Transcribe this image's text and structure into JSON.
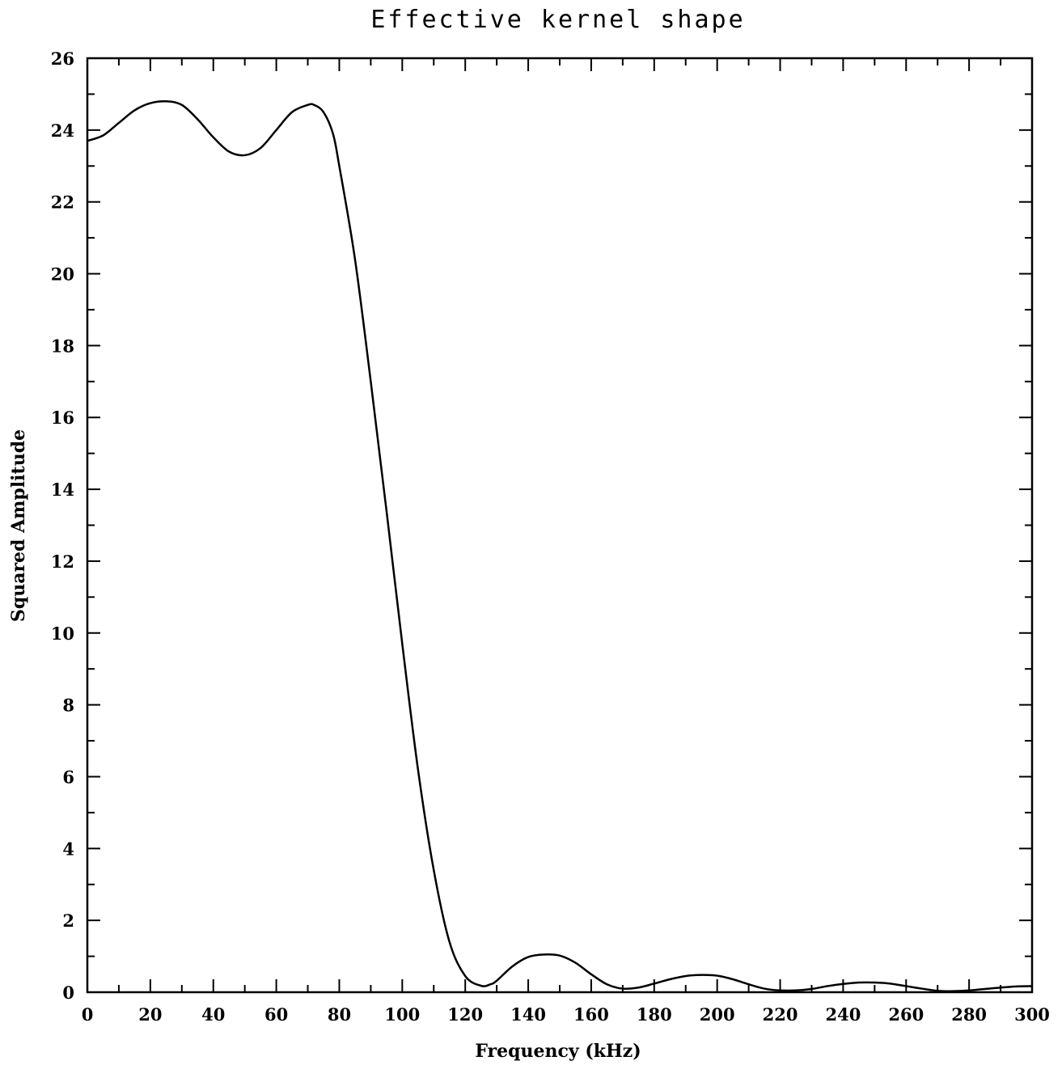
{
  "chart_data": {
    "type": "line",
    "title": "Effective kernel shape",
    "xlabel": "Frequency (kHz)",
    "ylabel": "Squared Amplitude",
    "xlim": [
      0,
      300
    ],
    "ylim": [
      0,
      26
    ],
    "x_ticks": [
      0,
      20,
      40,
      60,
      80,
      100,
      120,
      140,
      160,
      180,
      200,
      220,
      240,
      260,
      280,
      300
    ],
    "y_ticks": [
      0,
      2,
      4,
      6,
      8,
      10,
      12,
      14,
      16,
      18,
      20,
      22,
      24,
      26
    ],
    "x_tick_labels": [
      "0",
      "20",
      "40",
      "60",
      "80",
      "100",
      "120",
      "140",
      "160",
      "180",
      "200",
      "220",
      "240",
      "260",
      "280",
      "300"
    ],
    "y_tick_labels": [
      "0",
      "2",
      "4",
      "6",
      "8",
      "10",
      "12",
      "14",
      "16",
      "18",
      "20",
      "22",
      "24",
      "26"
    ],
    "grid": false,
    "series": [
      {
        "x": [
          0,
          5,
          10,
          15,
          20,
          25,
          30,
          35,
          40,
          45,
          50,
          55,
          60,
          65,
          70,
          72,
          75,
          78,
          80,
          85,
          90,
          95,
          100,
          105,
          110,
          115,
          120,
          125,
          128,
          130,
          135,
          140,
          145,
          150,
          155,
          160,
          165,
          170,
          175,
          180,
          185,
          190,
          195,
          200,
          205,
          210,
          215,
          220,
          225,
          230,
          235,
          240,
          245,
          250,
          255,
          260,
          265,
          270,
          275,
          280,
          285,
          290,
          295,
          300
        ],
        "y": [
          23.7,
          23.85,
          24.2,
          24.55,
          24.75,
          24.8,
          24.7,
          24.3,
          23.8,
          23.4,
          23.3,
          23.5,
          24.0,
          24.5,
          24.7,
          24.7,
          24.5,
          23.9,
          23.0,
          20.4,
          17.0,
          13.4,
          9.7,
          6.2,
          3.4,
          1.4,
          0.45,
          0.18,
          0.22,
          0.32,
          0.72,
          0.98,
          1.05,
          1.02,
          0.82,
          0.5,
          0.22,
          0.1,
          0.13,
          0.24,
          0.36,
          0.45,
          0.48,
          0.46,
          0.36,
          0.22,
          0.1,
          0.05,
          0.05,
          0.09,
          0.17,
          0.23,
          0.27,
          0.27,
          0.24,
          0.17,
          0.1,
          0.04,
          0.03,
          0.05,
          0.09,
          0.13,
          0.16,
          0.17
        ]
      }
    ]
  }
}
